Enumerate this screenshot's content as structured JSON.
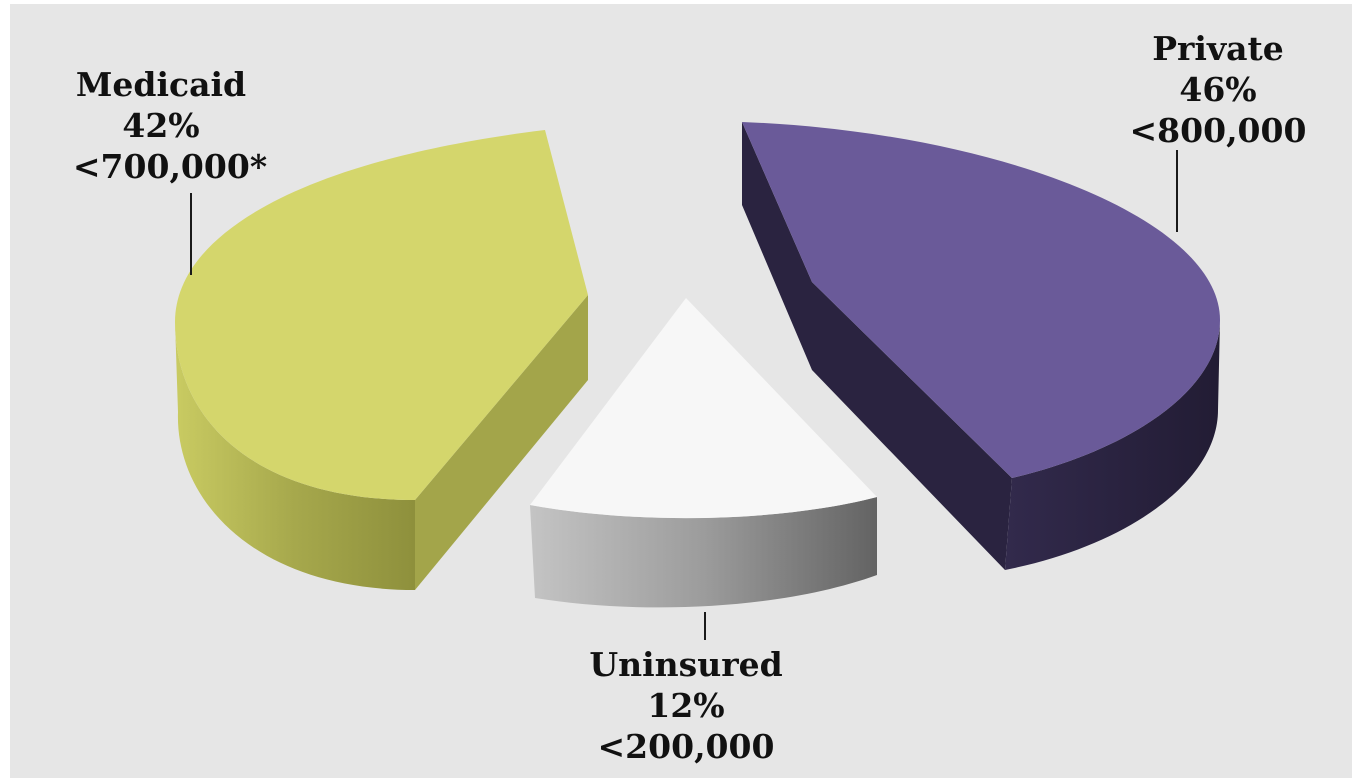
{
  "chart_data": {
    "type": "pie",
    "variant": "3d-exploded",
    "title": "",
    "slices": [
      {
        "label": "Medicaid",
        "percent": 42,
        "count": "<700,000*",
        "color_top": "#d4d66c",
        "color_side": "#a9ab4d"
      },
      {
        "label": "Private",
        "percent": 46,
        "count": "<800,000",
        "color_top": "#6a5a99",
        "color_side": "#2c2540"
      },
      {
        "label": "Uninsured",
        "percent": 12,
        "count": "<200,000",
        "color_top": "#f7f7f7",
        "color_side": "#8e8e8e"
      }
    ]
  }
}
